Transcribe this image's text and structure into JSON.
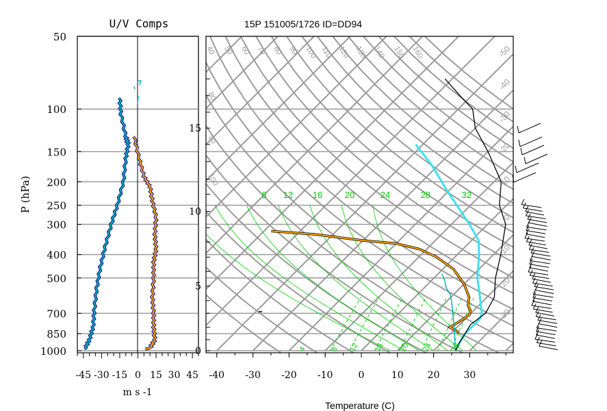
{
  "chart_data": [
    {
      "type": "line",
      "title": "U/V Comps",
      "xlabel": "m s -1",
      "ylabel": "P (hPa)",
      "xlim": [
        -50,
        50
      ],
      "x_ticks": [
        "-45",
        "-30",
        "-15",
        "0",
        "15",
        "30",
        "45"
      ],
      "y_ticks": [
        "50",
        "100",
        "150",
        "200",
        "250",
        "300",
        "400",
        "500",
        "700",
        "850",
        "1000"
      ],
      "y_scale": "log",
      "ylim": [
        1000,
        50
      ],
      "grid": true,
      "colors": {
        "u": "#00b4b4",
        "v": "#ffa500",
        "outline": "#0a0a8c"
      },
      "series": [
        {
          "points": [
            [
              -15,
              90
            ],
            [
              -14,
              105
            ],
            [
              -10,
              130
            ],
            [
              -8,
              140
            ],
            [
              -10,
              160
            ],
            [
              -12,
              200
            ],
            [
              -17,
              250
            ],
            [
              -22,
              300
            ],
            [
              -27,
              370
            ],
            [
              -31,
              450
            ],
            [
              -34,
              550
            ],
            [
              -36,
              680
            ],
            [
              -37,
              800
            ],
            [
              -40,
              900
            ],
            [
              -44,
              985
            ]
          ]
        },
        {
          "points": [
            [
              -3,
              130
            ],
            [
              1,
              160
            ],
            [
              5,
              190
            ],
            [
              10,
              210
            ],
            [
              12,
              240
            ],
            [
              15,
              280
            ],
            [
              14,
              330
            ],
            [
              15,
              380
            ],
            [
              13,
              430
            ],
            [
              13,
              500
            ],
            [
              12,
              600
            ],
            [
              13,
              700
            ],
            [
              13,
              800
            ],
            [
              14,
              900
            ],
            [
              10,
              975
            ],
            [
              6,
              985
            ]
          ]
        }
      ]
    },
    {
      "type": "line",
      "title": "15P 151005/1726 ID=DD94",
      "xlabel": "Temperature (C)",
      "x_ticks": [
        "-40",
        "-30",
        "-20",
        "-10",
        "0",
        "10",
        "20",
        "30"
      ],
      "height_axis_ticks": [
        "0",
        "5",
        "10",
        "15"
      ],
      "isotherm_labels_top": [
        "40",
        "50",
        "60",
        "70",
        "80",
        "90",
        "100",
        "110",
        "120",
        "130",
        "140",
        "150",
        "160"
      ],
      "isotherm_labels_left": [
        "80",
        "90",
        "100"
      ],
      "isotherm_labels_right": [
        "-50",
        "-40",
        "-30",
        "-20",
        "-10",
        "0",
        "10",
        "20",
        "30"
      ],
      "mixing_ratio_labels": [
        "8",
        "12",
        "16",
        "20",
        "24",
        "28",
        "32"
      ],
      "bottom_labels": [
        "4",
        "8",
        "12",
        "16",
        "20",
        "24",
        "28"
      ],
      "colors": {
        "grid": "#9b9b9b",
        "mixing_ratio": "#00cc00",
        "temperature": "#000000",
        "dewpoint": "#ffa500",
        "parcel": "#40e0f0"
      },
      "series": [
        {
          "points": [
            [
              26,
              1000
            ],
            [
              25,
              930
            ],
            [
              24,
              850
            ],
            [
              23,
              780
            ],
            [
              24,
              700
            ],
            [
              22,
              600
            ],
            [
              17,
              500
            ],
            [
              12,
              400
            ],
            [
              5,
              300
            ],
            [
              -2,
              250
            ],
            [
              -8,
              200
            ],
            [
              -20,
              150
            ],
            [
              -30,
              120
            ],
            [
              -36,
              100
            ],
            [
              -42,
              90
            ],
            [
              -52,
              75
            ]
          ]
        },
        {
          "points": [
            [
              22,
              840
            ],
            [
              20,
              820
            ],
            [
              18,
              800
            ],
            [
              19,
              760
            ],
            [
              20,
              710
            ],
            [
              19,
              680
            ],
            [
              17,
              650
            ],
            [
              15,
              600
            ],
            [
              10,
              530
            ],
            [
              3,
              460
            ],
            [
              -5,
              410
            ],
            [
              -12,
              380
            ],
            [
              -20,
              360
            ],
            [
              -30,
              350
            ],
            [
              -45,
              330
            ],
            [
              -58,
              320
            ]
          ]
        },
        {
          "points": [
            [
              26,
              1000
            ],
            [
              25,
              930
            ],
            [
              24,
              850
            ],
            [
              24,
              740
            ],
            [
              23,
              700
            ],
            [
              18,
              600
            ],
            [
              12,
              500
            ],
            [
              6,
              400
            ],
            [
              2,
              350
            ],
            [
              -5,
              300
            ],
            [
              -20,
              220
            ],
            [
              -32,
              170
            ],
            [
              -42,
              140
            ]
          ]
        }
      ]
    }
  ],
  "wind_barbs": {
    "color": "#000000"
  }
}
